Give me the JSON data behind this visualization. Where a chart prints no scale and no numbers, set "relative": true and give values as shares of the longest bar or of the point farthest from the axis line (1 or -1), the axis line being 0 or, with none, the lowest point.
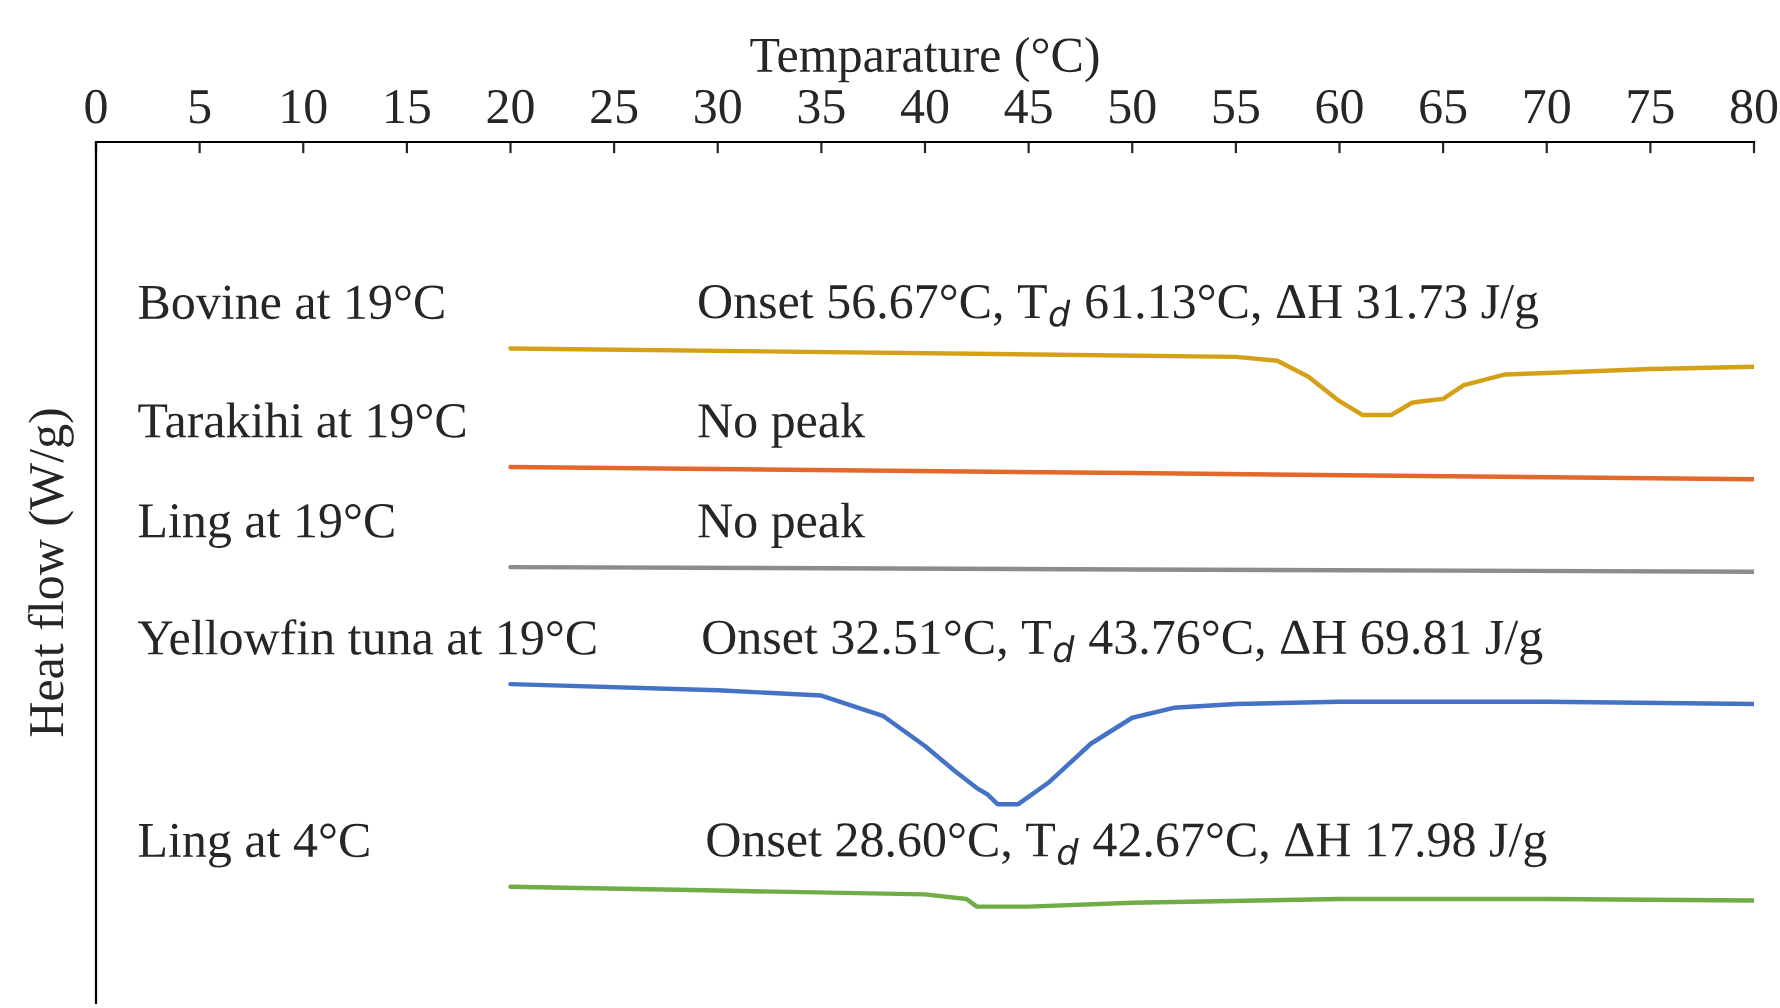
{
  "chart_data": {
    "type": "line",
    "relative": true,
    "xlabel": "Temparature (°C)",
    "ylabel": "Heat flow (W/g)",
    "xlim": [
      0,
      80
    ],
    "xticks": [
      0,
      5,
      10,
      15,
      20,
      25,
      30,
      35,
      40,
      45,
      50,
      55,
      60,
      65,
      70,
      75,
      80
    ],
    "grid": false,
    "legend": false,
    "series": [
      {
        "name": "Bovine at 19°C",
        "color": "#d4a017",
        "x": [
          20,
          55,
          57,
          58.5,
          60,
          61.1,
          62.5,
          63.5,
          64,
          65,
          66,
          68,
          70,
          75,
          80
        ],
        "values": [
          -0.27,
          -0.281,
          -0.286,
          -0.307,
          -0.339,
          -0.357,
          -0.357,
          -0.341,
          -0.339,
          -0.336,
          -0.318,
          -0.304,
          -0.302,
          -0.297,
          -0.294
        ]
      },
      {
        "name": "Tarakihi at 19°C",
        "color": "#e2692a",
        "x": [
          20,
          50,
          80
        ],
        "values": [
          -0.425,
          -0.433,
          -0.441
        ]
      },
      {
        "name": "Ling at 19°C",
        "color": "#8c8c8c",
        "x": [
          20,
          50,
          80
        ],
        "values": [
          -0.556,
          -0.559,
          -0.562
        ]
      },
      {
        "name": "Yellowfin tuna at 19°C",
        "color": "#4472c4",
        "x": [
          20,
          30,
          35,
          38,
          40,
          41.5,
          42.5,
          43,
          43.5,
          44.5,
          46,
          48,
          50,
          52,
          55,
          60,
          70,
          80
        ],
        "values": [
          -0.709,
          -0.717,
          -0.724,
          -0.751,
          -0.79,
          -0.824,
          -0.845,
          -0.853,
          -0.866,
          -0.866,
          -0.837,
          -0.787,
          -0.753,
          -0.74,
          -0.735,
          -0.732,
          -0.732,
          -0.735
        ]
      },
      {
        "name": "Ling at 4°C",
        "color": "#70ad47",
        "x": [
          20,
          30,
          40,
          42,
          42.5,
          45,
          50,
          60,
          70,
          80
        ],
        "values": [
          -0.974,
          -0.979,
          -0.984,
          -0.99,
          -1.0,
          -1.0,
          -0.995,
          -0.99,
          -0.99,
          -0.992
        ]
      }
    ],
    "annotations": [
      "Onset 56.67°C, T$_{d}$ 61.13°C, ΔH 31.73 J/g",
      "No peak",
      "No peak",
      "Onset 32.51°C, T$_{d}$ 43.76°C, ΔH 69.81 J/g",
      "Onset 28.60°C, T$_{d}$ 42.67°C, ΔH 17.98 J/g"
    ]
  }
}
